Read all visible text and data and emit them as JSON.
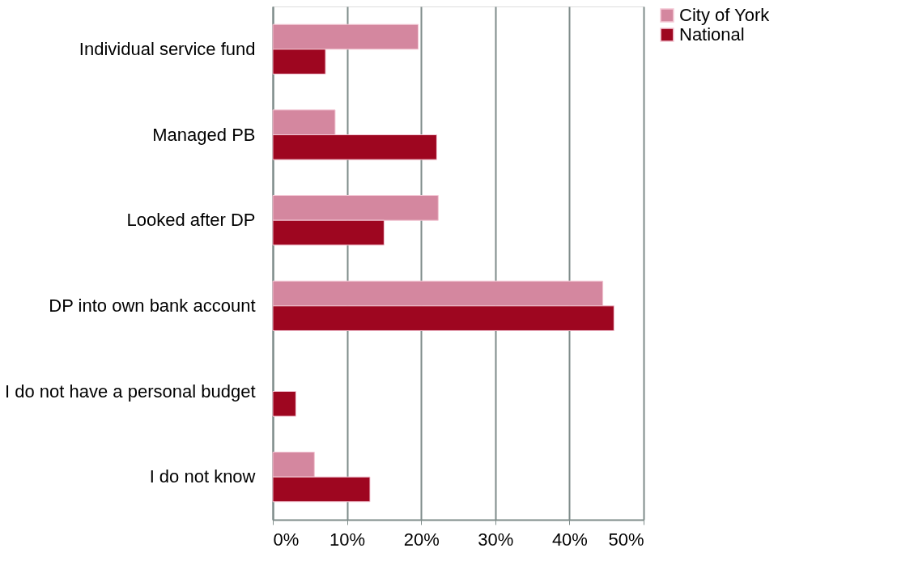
{
  "chart_data": {
    "type": "bar",
    "orientation": "horizontal",
    "categories": [
      "Individual service fund",
      "Managed PB",
      "Looked after DP",
      "DP into own bank account",
      "I do not have a personal budget",
      "I do not know"
    ],
    "series": [
      {
        "name": "City of York",
        "color": "#d4879f",
        "values": [
          19.6,
          8.4,
          22.3,
          44.5,
          null,
          5.6
        ]
      },
      {
        "name": "National",
        "color": "#9e0620",
        "values": [
          7.1,
          22.1,
          15.0,
          46.0,
          3.1,
          13.1
        ]
      }
    ],
    "xlim": [
      0,
      50
    ],
    "xticks": [
      {
        "value": 0,
        "label": "0%"
      },
      {
        "value": 10,
        "label": "10%"
      },
      {
        "value": 20,
        "label": "20%"
      },
      {
        "value": 30,
        "label": "30%"
      },
      {
        "value": 40,
        "label": "40%"
      },
      {
        "value": 50,
        "label": "50%"
      }
    ],
    "grid": "x",
    "legend": "right"
  }
}
